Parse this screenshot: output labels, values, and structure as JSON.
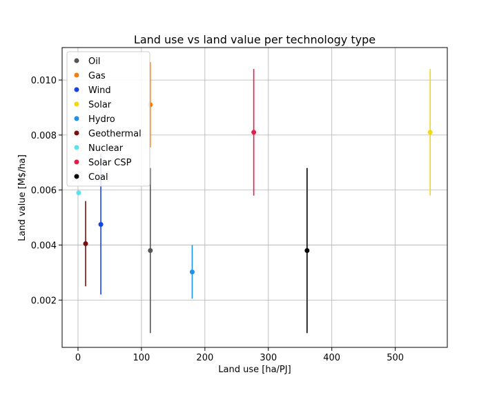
{
  "chart_data": {
    "type": "scatter",
    "title": "Land use vs land value per technology type",
    "xlabel": "Land use [ha/PJ]",
    "ylabel": "Land value [M$/ha]",
    "xlim": [
      -25,
      582
    ],
    "ylim": [
      0.00028,
      0.01118
    ],
    "xticks": [
      0,
      100,
      200,
      300,
      400,
      500
    ],
    "xtick_labels": [
      "0",
      "100",
      "200",
      "300",
      "400",
      "500"
    ],
    "yticks": [
      0.002,
      0.004,
      0.006,
      0.008,
      0.01
    ],
    "ytick_labels": [
      "0.002",
      "0.004",
      "0.006",
      "0.008",
      "0.010"
    ],
    "grid": true,
    "legend_position": "top-left",
    "series": [
      {
        "name": "Oil",
        "color": "#555555",
        "x": 114,
        "y": 0.0038,
        "ymin": 0.0008,
        "ymax": 0.0068
      },
      {
        "name": "Gas",
        "color": "#f07f0f",
        "x": 114,
        "y": 0.0091,
        "ymin": 0.00755,
        "ymax": 0.01065
      },
      {
        "name": "Wind",
        "color": "#1742e8",
        "x": 36,
        "y": 0.00475,
        "ymin": 0.0022,
        "ymax": 0.0073
      },
      {
        "name": "Solar",
        "color": "#f3d614",
        "x": 555,
        "y": 0.0081,
        "ymin": 0.0058,
        "ymax": 0.0104
      },
      {
        "name": "Hydro",
        "color": "#1e90e8",
        "x": 180,
        "y": 0.00302,
        "ymin": 0.00205,
        "ymax": 0.004
      },
      {
        "name": "Geothermal",
        "color": "#7b0d0d",
        "x": 12,
        "y": 0.00405,
        "ymin": 0.0025,
        "ymax": 0.0056
      },
      {
        "name": "Nuclear",
        "color": "#5ee2ea",
        "x": 1,
        "y": 0.0059,
        "ymin": 0.0059,
        "ymax": 0.0059
      },
      {
        "name": "Solar CSP",
        "color": "#e11d48",
        "x": 277,
        "y": 0.0081,
        "ymin": 0.0058,
        "ymax": 0.0104
      },
      {
        "name": "Coal",
        "color": "#000000",
        "x": 361,
        "y": 0.0038,
        "ymin": 0.0008,
        "ymax": 0.0068
      }
    ]
  }
}
